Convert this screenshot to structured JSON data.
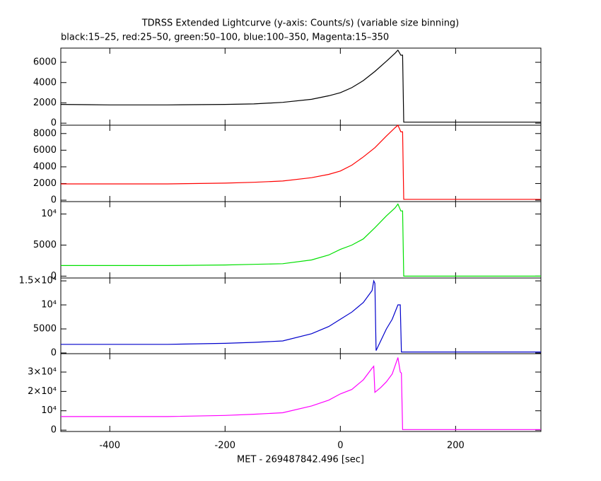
{
  "chart_data": [
    {
      "type": "line",
      "title": "TDRSS Extended Lightcurve (y-axis: Counts/s) (variable size binning)",
      "subtitle": "black:15–25, red:25–50, green:50–100, blue:100–350, Magenta:15–350",
      "color": "#000000",
      "x": [
        -485,
        -400,
        -300,
        -200,
        -150,
        -100,
        -50,
        -20,
        0,
        20,
        40,
        60,
        80,
        95,
        100,
        105,
        108,
        110,
        200,
        348
      ],
      "values": [
        1850,
        1800,
        1800,
        1850,
        1900,
        2050,
        2350,
        2700,
        3000,
        3500,
        4200,
        5100,
        6100,
        6900,
        7200,
        6700,
        6700,
        100,
        100,
        100
      ],
      "xlim": [
        -485,
        348
      ],
      "ylim": [
        -200,
        7400
      ],
      "yticks": [
        0,
        2000,
        4000,
        6000
      ]
    },
    {
      "type": "line",
      "color": "#ff0000",
      "x": [
        -485,
        -400,
        -300,
        -200,
        -150,
        -100,
        -50,
        -20,
        0,
        20,
        40,
        60,
        80,
        95,
        100,
        105,
        108,
        110,
        200,
        348
      ],
      "values": [
        1950,
        1950,
        1950,
        2050,
        2150,
        2300,
        2700,
        3100,
        3500,
        4200,
        5200,
        6300,
        7700,
        8700,
        9000,
        8200,
        8200,
        100,
        100,
        100
      ],
      "xlim": [
        -485,
        348
      ],
      "ylim": [
        -170,
        9000
      ],
      "yticks": [
        0,
        2000,
        4000,
        6000,
        8000
      ]
    },
    {
      "type": "line",
      "color": "#00e000",
      "x": [
        -485,
        -400,
        -300,
        -200,
        -150,
        -100,
        -50,
        -20,
        0,
        20,
        40,
        60,
        80,
        95,
        100,
        105,
        108,
        110,
        200,
        348
      ],
      "values": [
        1700,
        1700,
        1700,
        1800,
        1900,
        2000,
        2600,
        3400,
        4300,
        5000,
        6000,
        7800,
        9700,
        11000,
        11600,
        10500,
        10500,
        0,
        0,
        0
      ],
      "xlim": [
        -485,
        348
      ],
      "ylim": [
        -300,
        12000
      ],
      "yticks": [
        0,
        5000,
        {
          "value": 10000,
          "label": "10⁴"
        }
      ]
    },
    {
      "type": "line",
      "color": "#0000cc",
      "x": [
        -485,
        -400,
        -300,
        -200,
        -150,
        -100,
        -50,
        -20,
        0,
        20,
        40,
        55,
        58,
        60,
        62,
        70,
        80,
        90,
        100,
        104,
        106,
        200,
        348
      ],
      "values": [
        1800,
        1800,
        1800,
        2000,
        2200,
        2500,
        4000,
        5500,
        7000,
        8500,
        10500,
        13000,
        15000,
        14500,
        500,
        2500,
        5000,
        7000,
        10000,
        10000,
        200,
        200,
        200
      ],
      "xlim": [
        -485,
        348
      ],
      "ylim": [
        -150,
        15600
      ],
      "yticks": [
        0,
        5000,
        {
          "value": 10000,
          "label": "10⁴"
        },
        {
          "value": 15000,
          "label": "1.5×10⁴"
        }
      ]
    },
    {
      "type": "line",
      "color": "#ff00ff",
      "xlabel": "MET - 269487842.496 [sec]",
      "x": [
        -485,
        -400,
        -300,
        -200,
        -150,
        -100,
        -50,
        -20,
        0,
        20,
        40,
        55,
        58,
        60,
        70,
        80,
        90,
        100,
        104,
        106,
        108,
        200,
        348
      ],
      "values": [
        7000,
        7000,
        7000,
        7600,
        8200,
        9000,
        12500,
        15500,
        18700,
        21000,
        26000,
        32000,
        33000,
        19500,
        22000,
        25000,
        29000,
        37500,
        30000,
        29500,
        300,
        300,
        300
      ],
      "xlim": [
        -485,
        348
      ],
      "ylim": [
        -700,
        39500
      ],
      "yticks": [
        0,
        {
          "value": 10000,
          "label": "10⁴"
        },
        {
          "value": 20000,
          "label": "2×10⁴"
        },
        {
          "value": 30000,
          "label": "3×10⁴"
        }
      ],
      "xticks": [
        -400,
        -200,
        0,
        200
      ]
    }
  ]
}
